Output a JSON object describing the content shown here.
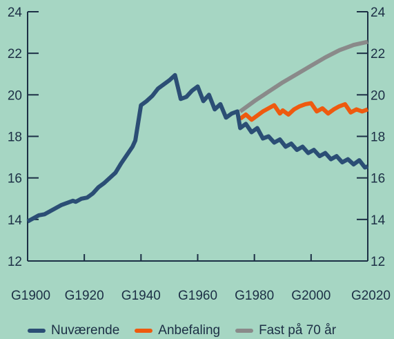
{
  "chart_data": {
    "type": "line",
    "xlabel": "",
    "ylabel": "",
    "xlim": [
      1900,
      2020
    ],
    "ylim": [
      12,
      24
    ],
    "x_ticks": [
      "G1900",
      "G1920",
      "G1940",
      "G1960",
      "G1980",
      "G2000",
      "G2020"
    ],
    "y_ticks": [
      "12",
      "14",
      "16",
      "18",
      "20",
      "22",
      "24"
    ],
    "grid": false,
    "legend_position": "bottom",
    "series": [
      {
        "name": "Nuværende",
        "color": "#2b4e75",
        "x": [
          1900,
          1902,
          1904,
          1906,
          1908,
          1910,
          1912,
          1914,
          1916,
          1917,
          1919,
          1921,
          1923,
          1925,
          1927,
          1929,
          1931,
          1933,
          1935,
          1937,
          1938,
          1940,
          1942,
          1944,
          1946,
          1948,
          1950,
          1952,
          1954,
          1956,
          1958,
          1960,
          1962,
          1964,
          1966,
          1968,
          1970,
          1972,
          1974,
          1975,
          1977,
          1979,
          1981,
          1983,
          1985,
          1987,
          1989,
          1991,
          1993,
          1995,
          1997,
          1999,
          2001,
          2003,
          2005,
          2007,
          2009,
          2011,
          2013,
          2015,
          2017,
          2019,
          2020
        ],
        "values": [
          13.9,
          14.05,
          14.2,
          14.25,
          14.4,
          14.55,
          14.7,
          14.8,
          14.9,
          14.85,
          15.0,
          15.05,
          15.25,
          15.55,
          15.75,
          16.0,
          16.25,
          16.7,
          17.1,
          17.5,
          17.8,
          19.5,
          19.7,
          19.95,
          20.3,
          20.5,
          20.7,
          20.95,
          19.8,
          19.9,
          20.2,
          20.4,
          19.7,
          20.0,
          19.3,
          19.55,
          18.9,
          19.1,
          19.2,
          18.4,
          18.6,
          18.2,
          18.4,
          17.9,
          18.0,
          17.7,
          17.85,
          17.5,
          17.65,
          17.35,
          17.5,
          17.2,
          17.35,
          17.05,
          17.2,
          16.9,
          17.05,
          16.75,
          16.9,
          16.65,
          16.85,
          16.5,
          16.55
        ]
      },
      {
        "name": "Anbefaling",
        "color": "#ee5a0f",
        "x": [
          1975,
          1977,
          1979,
          1981,
          1983,
          1985,
          1987,
          1989,
          1990,
          1992,
          1994,
          1996,
          1998,
          2000,
          2002,
          2004,
          2006,
          2008,
          2010,
          2012,
          2014,
          2016,
          2018,
          2020
        ],
        "values": [
          18.85,
          19.05,
          18.8,
          19.0,
          19.2,
          19.35,
          19.5,
          19.1,
          19.25,
          19.05,
          19.3,
          19.45,
          19.55,
          19.6,
          19.2,
          19.35,
          19.1,
          19.3,
          19.45,
          19.55,
          19.15,
          19.3,
          19.2,
          19.3
        ]
      },
      {
        "name": "Fast på 70 år",
        "color": "#8a8a8a",
        "x": [
          1975,
          1980,
          1985,
          1990,
          1995,
          2000,
          2005,
          2010,
          2015,
          2020
        ],
        "values": [
          19.2,
          19.7,
          20.15,
          20.6,
          21.0,
          21.4,
          21.8,
          22.15,
          22.4,
          22.55
        ]
      }
    ]
  },
  "colors": {
    "background": "#a6d6c3",
    "axis": "#1c2f45"
  }
}
